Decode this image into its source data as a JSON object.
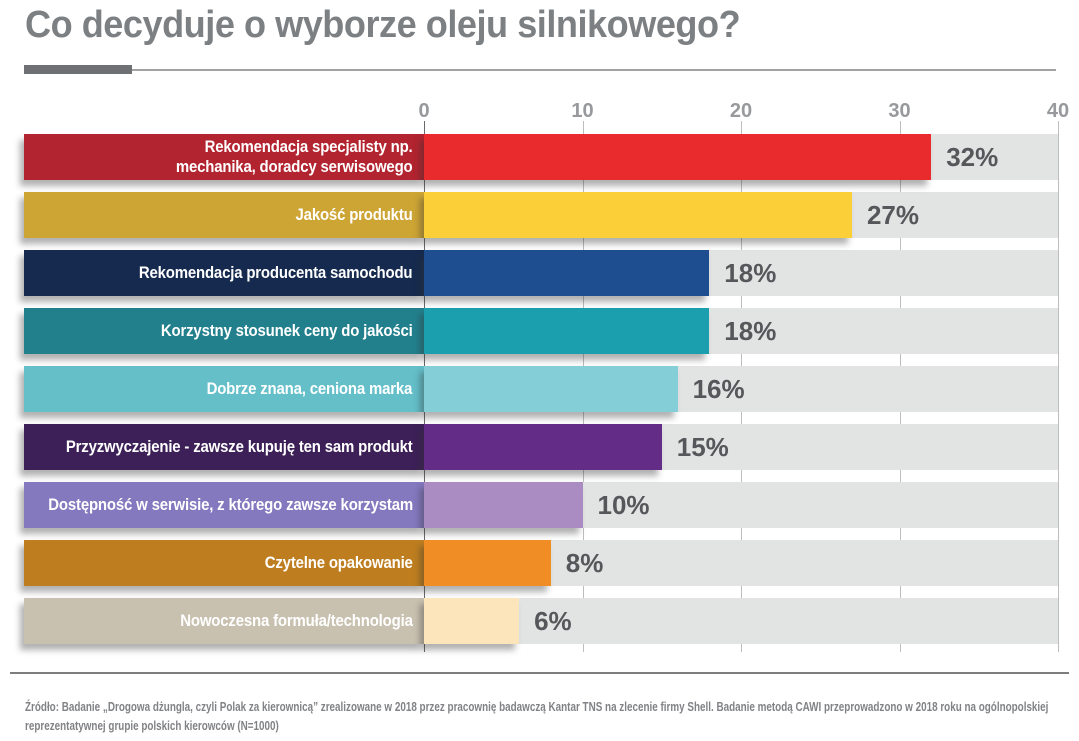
{
  "page": {
    "title": "Co decyduje o wyborze oleju silnikowego?",
    "source": {
      "line1": "Źródło: Badanie „Drogowa dżungla, czyli Polak za kierownicą” zrealizowane w 2018 przez pracownię badawczą Kantar TNS na zlecenie firmy Shell. Badanie metodą CAWI przeprowadzono w 2018 roku na ogólnopolskiej",
      "line2": "reprezentatywnej grupie polskich kierowców (N=1000)"
    }
  },
  "chart_data": {
    "type": "bar",
    "orientation": "horizontal",
    "title": "Co decyduje o wyborze oleju silnikowego?",
    "xlim": [
      0,
      40
    ],
    "x_ticks": [
      0,
      10,
      20,
      30,
      40
    ],
    "grid": true,
    "categories": [
      "Rekomendacja specjalisty np.\nmechanika, doradcy serwisowego",
      "Jakość produktu",
      "Rekomendacja producenta samochodu",
      "Korzystny stosunek ceny do jakości",
      "Dobrze znana, ceniona marka",
      "Przyzwyczajenie - zawsze kupuję ten sam produkt",
      "Dostępność w serwisie, z którego zawsze korzystam",
      "Czytelne opakowanie",
      "Nowoczesna formuła/technologia"
    ],
    "values": [
      32,
      27,
      18,
      18,
      16,
      15,
      10,
      8,
      6
    ],
    "value_labels": [
      "32%",
      "27%",
      "18%",
      "18%",
      "16%",
      "15%",
      "10%",
      "8%",
      "6%"
    ],
    "label_colors": [
      "#b2242f",
      "#cda535",
      "#152a4e",
      "#22808d",
      "#64bfc9",
      "#3c2057",
      "#8478be",
      "#be7e20",
      "#c9c1b0"
    ],
    "bar_colors": [
      "#e92b2e",
      "#fbcf38",
      "#1e4e90",
      "#1b9fae",
      "#84ced7",
      "#632c86",
      "#aa8bc2",
      "#f18d25",
      "#fce5bb"
    ],
    "track_color": "#e2e3e3",
    "colors": {
      "title_gray": "#7d8083",
      "axis_label_gray": "#97999c",
      "value_label_gray": "#55575a",
      "gridline_light": "#bcbdbf",
      "gridline_zero": "#67696c",
      "source_gray": "#808285"
    }
  }
}
